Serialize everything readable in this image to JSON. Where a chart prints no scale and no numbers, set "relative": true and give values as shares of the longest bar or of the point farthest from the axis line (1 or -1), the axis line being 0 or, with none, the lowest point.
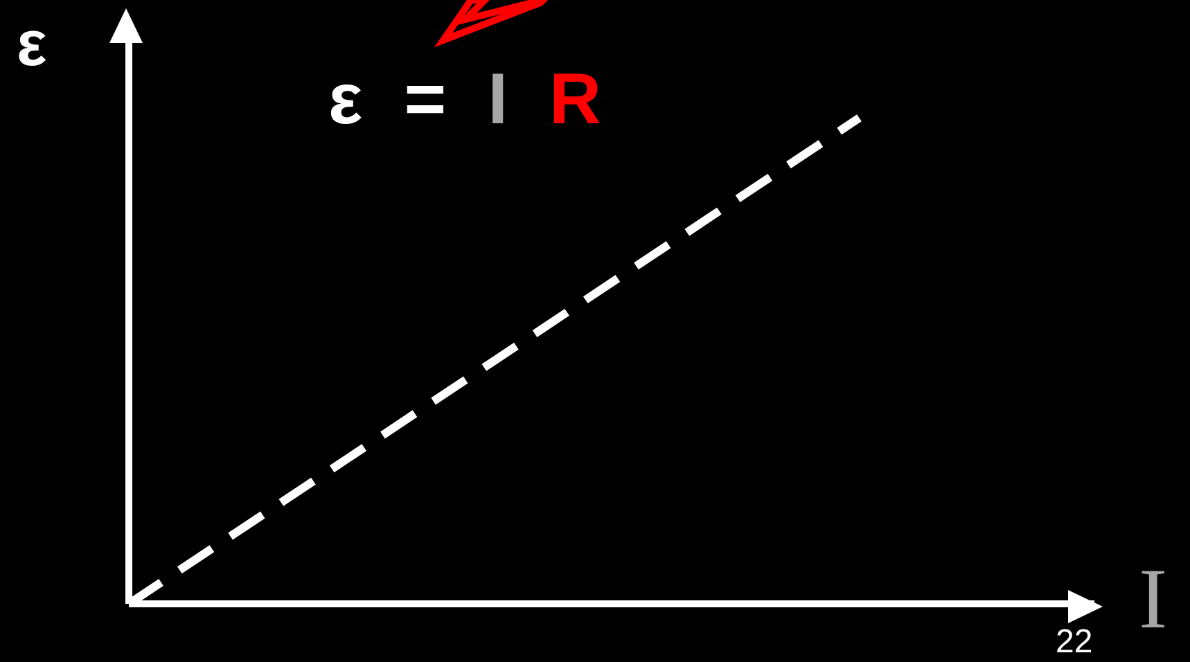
{
  "chart_data": {
    "type": "line",
    "title": "ε = I R",
    "xlabel": "I",
    "ylabel": "ε",
    "categories": [
      null,
      null,
      null,
      null
    ],
    "relative": true,
    "series": [
      {
        "color": "#ffffff",
        "values": [
          0,
          0.333,
          0.667,
          1
        ]
      }
    ],
    "line_style": "dashed",
    "marker": "none",
    "grid": false,
    "annotations": [
      "22"
    ]
  }
}
